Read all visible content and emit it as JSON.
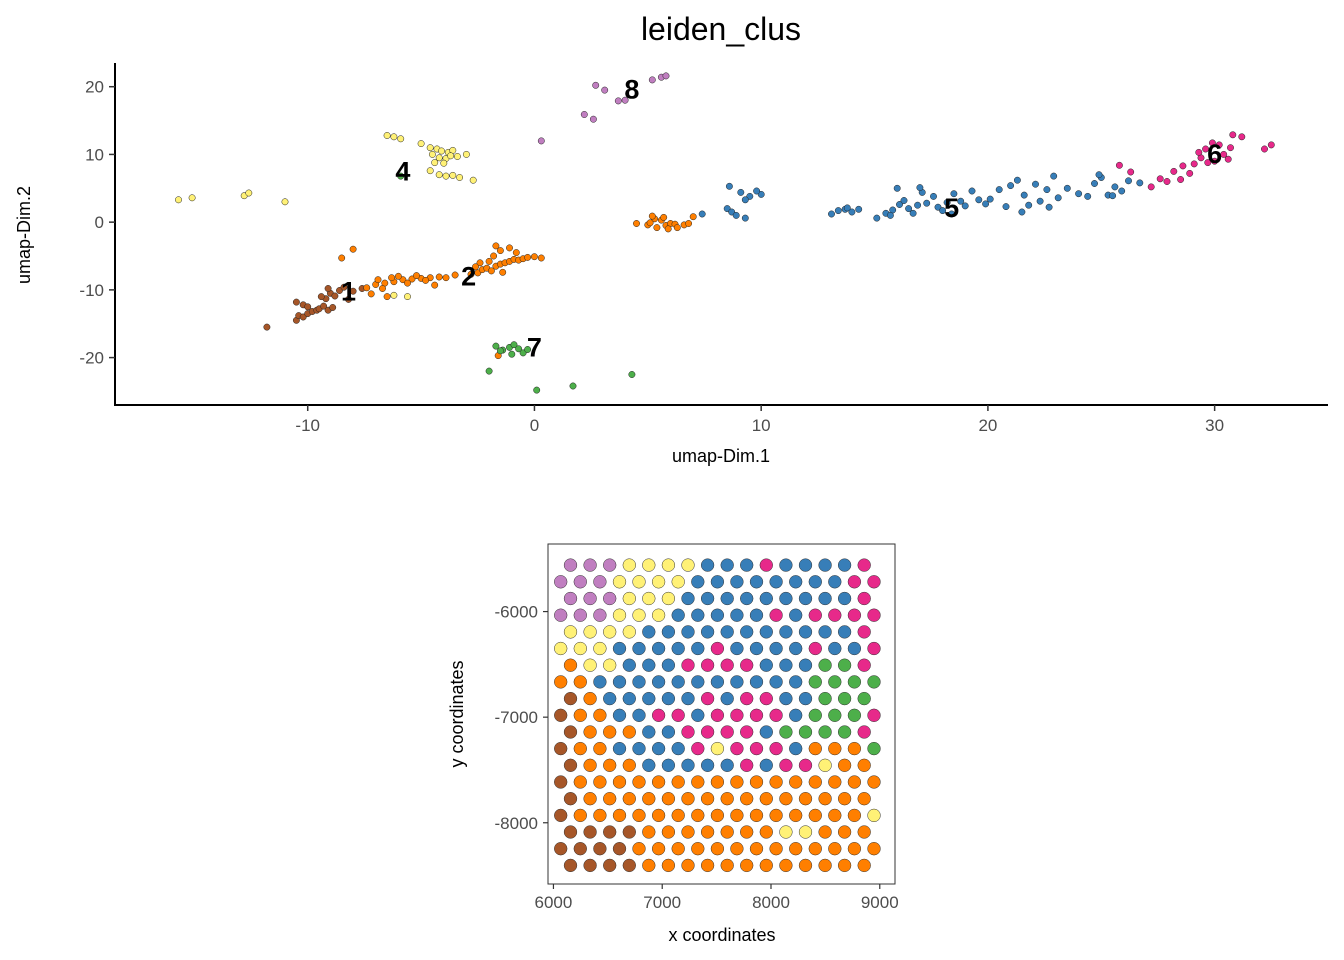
{
  "title": "leiden_clus",
  "cluster_colors": {
    "1": "#A65628",
    "2": "#FF7F00",
    "4": "#FFF176",
    "5": "#377EB8",
    "6": "#E7298A",
    "7": "#4DAF4A",
    "8": "#C07EC0"
  },
  "chart_data": [
    {
      "type": "scatter",
      "title": "leiden_clus",
      "xlabel": "umap-Dim.1",
      "ylabel": "umap-Dim.2",
      "xlim": [
        -18.5,
        35
      ],
      "ylim": [
        -27,
        23.5
      ],
      "xticks": [
        -10,
        0,
        10,
        20,
        30
      ],
      "yticks": [
        -20,
        -10,
        0,
        10,
        20
      ],
      "xtick_labels": [
        "-10",
        "0",
        "10",
        "20",
        "30"
      ],
      "ytick_labels": [
        "-20",
        "-10",
        "0",
        "10",
        "20"
      ],
      "grid": false,
      "cluster_labels": [
        {
          "text": "1",
          "x": -8.2,
          "y": -10.5
        },
        {
          "text": "2",
          "x": -2.9,
          "y": -8.3
        },
        {
          "text": "4",
          "x": -5.8,
          "y": 7.2
        },
        {
          "text": "5",
          "x": 18.4,
          "y": 1.8
        },
        {
          "text": "6",
          "x": 30.0,
          "y": 9.8
        },
        {
          "text": "7",
          "x": 0.0,
          "y": -18.8
        },
        {
          "text": "8",
          "x": 4.3,
          "y": 19.3
        }
      ],
      "series": [
        {
          "cluster": "1",
          "points": [
            [
              -11.8,
              -15.5
            ],
            [
              -10.5,
              -14.5
            ],
            [
              -10.4,
              -13.8
            ],
            [
              -10.2,
              -14.0
            ],
            [
              -10.0,
              -13.5
            ],
            [
              -9.8,
              -13.2
            ],
            [
              -9.6,
              -13.0
            ],
            [
              -10.5,
              -11.8
            ],
            [
              -10.2,
              -12.2
            ],
            [
              -10.0,
              -12.5
            ],
            [
              -9.5,
              -12.8
            ],
            [
              -9.3,
              -12.4
            ],
            [
              -9.1,
              -13.0
            ],
            [
              -8.9,
              -12.6
            ],
            [
              -9.2,
              -11.3
            ],
            [
              -9.0,
              -10.5
            ],
            [
              -8.8,
              -10.9
            ],
            [
              -9.4,
              -11.0
            ],
            [
              -8.6,
              -10.1
            ],
            [
              -8.4,
              -9.6
            ],
            [
              -9.1,
              -9.8
            ],
            [
              -8.2,
              -11.4
            ],
            [
              -8.0,
              -10.2
            ],
            [
              -7.6,
              -9.8
            ]
          ]
        },
        {
          "cluster": "2",
          "points": [
            [
              -8.5,
              -5.3
            ],
            [
              -8.0,
              -4.0
            ],
            [
              -7.4,
              -9.7
            ],
            [
              -7.0,
              -9.2
            ],
            [
              -6.6,
              -9.0
            ],
            [
              -6.2,
              -8.8
            ],
            [
              -5.8,
              -8.5
            ],
            [
              -5.4,
              -8.4
            ],
            [
              -5.0,
              -8.3
            ],
            [
              -4.6,
              -8.2
            ],
            [
              -4.2,
              -8.1
            ],
            [
              -3.9,
              -8.2
            ],
            [
              -3.5,
              -7.8
            ],
            [
              -7.2,
              -10.6
            ],
            [
              -6.5,
              -11.0
            ],
            [
              -6.9,
              -8.5
            ],
            [
              -6.0,
              -8.0
            ],
            [
              -5.6,
              -9.0
            ],
            [
              -5.2,
              -7.9
            ],
            [
              -4.8,
              -8.6
            ],
            [
              -4.4,
              -9.3
            ],
            [
              -6.7,
              -9.8
            ],
            [
              -6.3,
              -8.2
            ],
            [
              -2.8,
              -7.7
            ],
            [
              -2.5,
              -7.5
            ],
            [
              -2.3,
              -7.0
            ],
            [
              -2.1,
              -6.8
            ],
            [
              -1.9,
              -7.2
            ],
            [
              -1.7,
              -6.5
            ],
            [
              -1.5,
              -6.2
            ],
            [
              -1.3,
              -6.0
            ],
            [
              -1.1,
              -5.8
            ],
            [
              -0.9,
              -5.5
            ],
            [
              -0.7,
              -5.6
            ],
            [
              -0.5,
              -5.4
            ],
            [
              -0.3,
              -5.2
            ],
            [
              0.0,
              -5.1
            ],
            [
              0.3,
              -5.3
            ],
            [
              -1.7,
              -3.5
            ],
            [
              -1.5,
              -4.2
            ],
            [
              -1.1,
              -3.8
            ],
            [
              -0.8,
              -4.5
            ],
            [
              -1.8,
              -5.0
            ],
            [
              -2.4,
              -6.0
            ],
            [
              -2.0,
              -5.8
            ],
            [
              -1.4,
              -7.4
            ],
            [
              -2.6,
              -6.6
            ],
            [
              -1.6,
              -19.7
            ],
            [
              4.5,
              -0.2
            ],
            [
              5.0,
              -0.4
            ],
            [
              5.3,
              0.5
            ],
            [
              5.6,
              0.3
            ],
            [
              5.8,
              -0.5
            ],
            [
              6.0,
              -0.2
            ],
            [
              6.2,
              -0.3
            ],
            [
              5.4,
              -0.8
            ],
            [
              5.9,
              -1.0
            ],
            [
              6.3,
              -0.8
            ],
            [
              6.6,
              -0.4
            ],
            [
              5.2,
              0.9
            ],
            [
              5.1,
              -0.1
            ],
            [
              6.8,
              -0.2
            ],
            [
              7.0,
              0.8
            ],
            [
              5.7,
              0.7
            ]
          ]
        },
        {
          "cluster": "4",
          "points": [
            [
              -15.7,
              3.3
            ],
            [
              -15.1,
              3.6
            ],
            [
              -12.8,
              3.9
            ],
            [
              -12.6,
              4.3
            ],
            [
              -11.0,
              3.0
            ],
            [
              -6.5,
              12.8
            ],
            [
              -6.2,
              12.6
            ],
            [
              -5.9,
              12.3
            ],
            [
              -5.0,
              11.6
            ],
            [
              -4.6,
              11.0
            ],
            [
              -4.3,
              10.8
            ],
            [
              -4.1,
              10.5
            ],
            [
              -3.8,
              10.3
            ],
            [
              -3.6,
              10.6
            ],
            [
              -4.5,
              10.0
            ],
            [
              -4.2,
              9.5
            ],
            [
              -3.9,
              9.4
            ],
            [
              -3.7,
              9.8
            ],
            [
              -4.4,
              8.8
            ],
            [
              -4.0,
              8.7
            ],
            [
              -3.4,
              9.7
            ],
            [
              -4.6,
              7.6
            ],
            [
              -4.2,
              7.0
            ],
            [
              -3.9,
              6.8
            ],
            [
              -3.6,
              6.9
            ],
            [
              -3.3,
              6.6
            ],
            [
              -2.7,
              6.2
            ],
            [
              -3.0,
              10.0
            ],
            [
              -6.2,
              -10.8
            ],
            [
              -5.6,
              -11.0
            ]
          ]
        },
        {
          "cluster": "5",
          "points": [
            [
              7.4,
              1.2
            ],
            [
              8.5,
              2.0
            ],
            [
              8.7,
              1.5
            ],
            [
              8.9,
              1.0
            ],
            [
              9.3,
              0.6
            ],
            [
              8.6,
              5.3
            ],
            [
              9.1,
              4.4
            ],
            [
              9.5,
              3.8
            ],
            [
              10.0,
              4.1
            ],
            [
              9.8,
              4.6
            ],
            [
              9.3,
              3.3
            ],
            [
              13.1,
              1.2
            ],
            [
              13.4,
              1.7
            ],
            [
              13.7,
              1.9
            ],
            [
              14.0,
              1.5
            ],
            [
              13.8,
              2.1
            ],
            [
              14.3,
              1.9
            ],
            [
              15.1,
              0.6
            ],
            [
              15.5,
              1.3
            ],
            [
              15.8,
              1.8
            ],
            [
              16.1,
              2.6
            ],
            [
              16.3,
              3.2
            ],
            [
              16.5,
              2.0
            ],
            [
              16.7,
              1.3
            ],
            [
              16.9,
              2.5
            ],
            [
              17.1,
              4.4
            ],
            [
              17.0,
              5.1
            ],
            [
              17.3,
              2.8
            ],
            [
              17.6,
              3.8
            ],
            [
              17.8,
              2.2
            ],
            [
              18.0,
              1.7
            ],
            [
              18.2,
              2.9
            ],
            [
              18.5,
              4.2
            ],
            [
              18.8,
              3.1
            ],
            [
              19.0,
              2.4
            ],
            [
              19.3,
              4.6
            ],
            [
              19.6,
              3.3
            ],
            [
              19.9,
              2.7
            ],
            [
              20.1,
              3.4
            ],
            [
              20.5,
              4.8
            ],
            [
              20.8,
              2.3
            ],
            [
              21.0,
              5.4
            ],
            [
              21.3,
              6.2
            ],
            [
              21.6,
              4.0
            ],
            [
              21.8,
              2.5
            ],
            [
              22.1,
              5.6
            ],
            [
              22.3,
              3.1
            ],
            [
              22.6,
              4.8
            ],
            [
              22.9,
              6.8
            ],
            [
              22.7,
              2.2
            ],
            [
              23.1,
              3.6
            ],
            [
              23.5,
              5.0
            ],
            [
              24.0,
              4.2
            ],
            [
              24.4,
              3.8
            ],
            [
              24.7,
              5.7
            ],
            [
              25.0,
              6.6
            ],
            [
              25.3,
              4.0
            ],
            [
              25.6,
              5.2
            ],
            [
              25.9,
              4.6
            ],
            [
              26.2,
              6.1
            ],
            [
              26.7,
              5.8
            ],
            [
              25.5,
              3.9
            ],
            [
              24.9,
              7.0
            ],
            [
              21.5,
              1.5
            ],
            [
              16.0,
              5.0
            ],
            [
              15.7,
              1.0
            ],
            [
              18.4,
              1.2
            ]
          ]
        },
        {
          "cluster": "6",
          "points": [
            [
              25.8,
              8.4
            ],
            [
              26.3,
              7.4
            ],
            [
              27.2,
              5.2
            ],
            [
              27.6,
              6.4
            ],
            [
              27.9,
              6.0
            ],
            [
              28.2,
              7.5
            ],
            [
              28.6,
              8.3
            ],
            [
              28.9,
              7.2
            ],
            [
              29.1,
              8.6
            ],
            [
              29.4,
              9.5
            ],
            [
              29.6,
              10.8
            ],
            [
              29.9,
              11.7
            ],
            [
              30.2,
              11.4
            ],
            [
              30.4,
              10.0
            ],
            [
              30.6,
              9.3
            ],
            [
              30.8,
              12.9
            ],
            [
              31.2,
              12.6
            ],
            [
              29.3,
              10.3
            ],
            [
              30.0,
              9.0
            ],
            [
              32.2,
              10.8
            ],
            [
              32.5,
              11.4
            ],
            [
              28.5,
              6.3
            ],
            [
              29.7,
              8.8
            ],
            [
              30.7,
              11.0
            ]
          ]
        },
        {
          "cluster": "7",
          "points": [
            [
              -2.0,
              -22.0
            ],
            [
              -1.7,
              -18.3
            ],
            [
              -1.4,
              -18.9
            ],
            [
              -1.1,
              -18.5
            ],
            [
              -0.9,
              -18.1
            ],
            [
              -0.7,
              -18.7
            ],
            [
              -0.5,
              -19.3
            ],
            [
              -0.3,
              -18.8
            ],
            [
              -1.5,
              -19.0
            ],
            [
              -1.0,
              -19.5
            ],
            [
              0.1,
              -24.8
            ],
            [
              1.7,
              -24.2
            ],
            [
              4.3,
              -22.5
            ],
            [
              -5.9,
              6.8
            ]
          ]
        },
        {
          "cluster": "8",
          "points": [
            [
              0.3,
              12.0
            ],
            [
              2.2,
              15.9
            ],
            [
              2.6,
              15.2
            ],
            [
              2.7,
              20.2
            ],
            [
              3.1,
              19.5
            ],
            [
              3.7,
              17.9
            ],
            [
              4.0,
              18.0
            ],
            [
              5.2,
              21.0
            ],
            [
              5.6,
              21.4
            ],
            [
              5.8,
              21.6
            ]
          ]
        }
      ]
    },
    {
      "type": "scatter",
      "xlabel": "x coordinates",
      "ylabel": "y coordinates",
      "xlim": [
        5950,
        9140
      ],
      "ylim": [
        -8580,
        -5360
      ],
      "xticks": [
        6000,
        7000,
        8000,
        9000
      ],
      "yticks": [
        -8000,
        -7000,
        -6000
      ],
      "xtick_labels": [
        "6000",
        "7000",
        "8000",
        "9000"
      ],
      "ytick_labels": [
        "-8000",
        "-7000",
        "-6000"
      ],
      "grid": false,
      "grid_spec": {
        "rows": 19,
        "cols": 17,
        "x_even_row_start": 6157,
        "x_odd_row_start": 6067,
        "x_step": 180,
        "y_top": -5560,
        "y_step": -158
      },
      "rows": [
        "8884444555655556",
        "88844445555555566",
        "8884445555555556",
        "88844455555656666",
        "4444555555555556",
        "44455555655556556",
        "2445556666555776",
        "22555555555557777",
        "1255555656655777",
        "12255665666657776",
        "1222556666577776",
        "12255556466652227",
        "1222555556566422",
        "12222222222222222",
        "1222222222222222",
        "12222222222222224",
        "1111222222244222",
        "11112222222222222",
        "1111222222222222"
      ]
    }
  ]
}
